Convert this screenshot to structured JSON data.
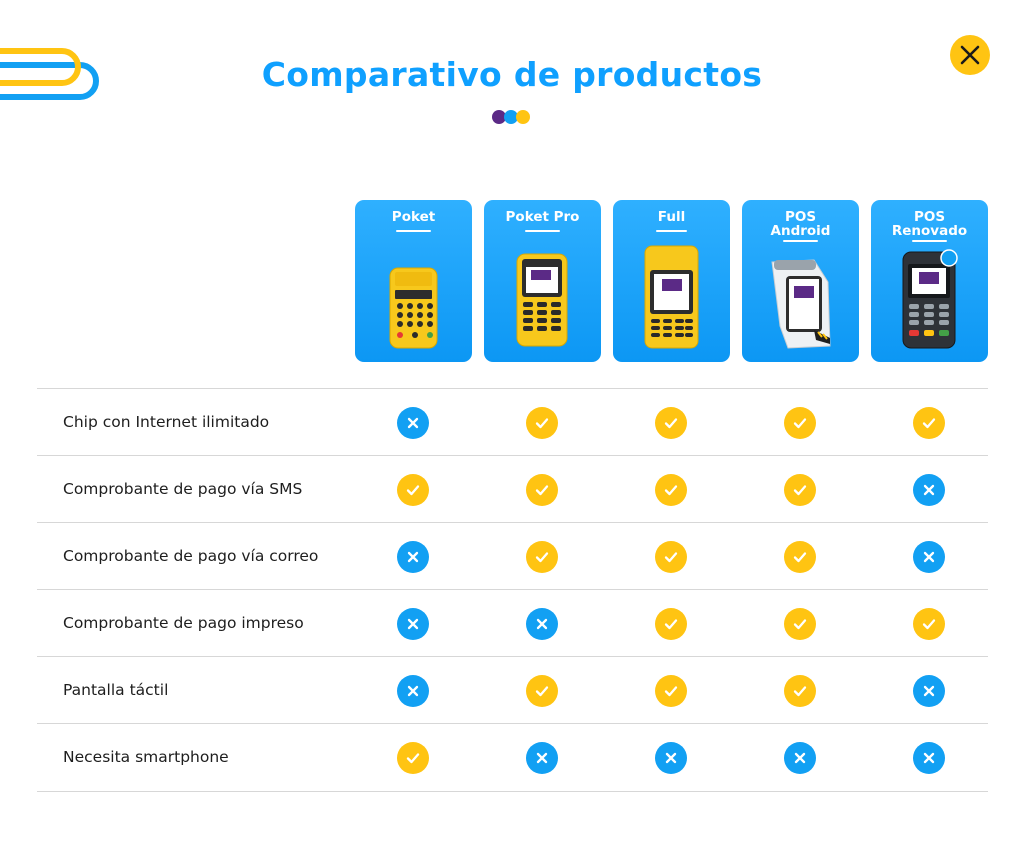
{
  "header": {
    "title": "Comparativo de productos",
    "dots": [
      "#5b2a86",
      "#12a0f3",
      "#ffc412"
    ]
  },
  "colors": {
    "blue": "#12a0f3",
    "yellow": "#ffc412",
    "purple": "#5b2a86"
  },
  "icons": {
    "close": "close-icon",
    "yes": "check-icon",
    "no": "x-icon"
  },
  "products": [
    {
      "name": "Poket",
      "device": "poket"
    },
    {
      "name": "Poket Pro",
      "device": "poketpro"
    },
    {
      "name": "Full",
      "device": "full"
    },
    {
      "name": "POS\nAndroid",
      "device": "android"
    },
    {
      "name": "POS\nRenovado",
      "device": "renovado"
    }
  ],
  "features": [
    {
      "label": "Chip con Internet ilimitado",
      "values": [
        false,
        true,
        true,
        true,
        true
      ]
    },
    {
      "label": "Comprobante de pago vía SMS",
      "values": [
        true,
        true,
        true,
        true,
        false
      ]
    },
    {
      "label": "Comprobante de pago vía correo",
      "values": [
        false,
        true,
        true,
        true,
        false
      ]
    },
    {
      "label": "Comprobante de pago impreso",
      "values": [
        false,
        false,
        true,
        true,
        true
      ]
    },
    {
      "label": "Pantalla táctil",
      "values": [
        false,
        true,
        true,
        true,
        false
      ]
    },
    {
      "label": "Necesita smartphone",
      "values": [
        true,
        false,
        false,
        false,
        false
      ]
    }
  ]
}
